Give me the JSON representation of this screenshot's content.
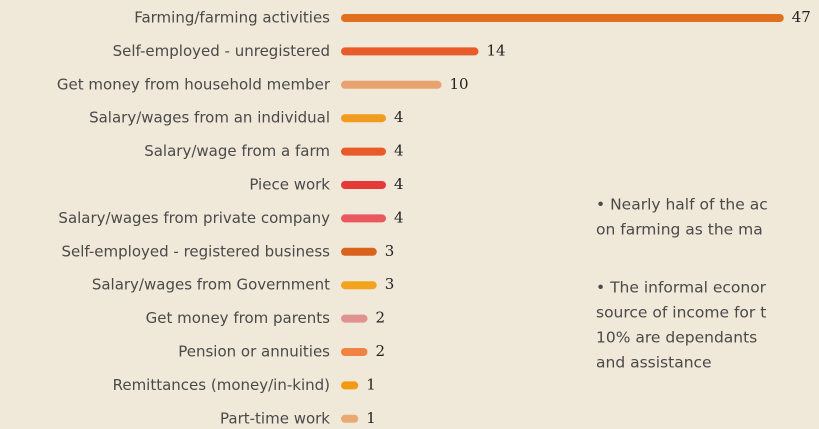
{
  "chart_data": {
    "type": "bar",
    "orientation": "horizontal",
    "categories": [
      "Farming/farming activities",
      "Self-employed - unregistered",
      "Get money from household member",
      "Salary/wages from an individual",
      "Salary/wage from a farm",
      "Piece work",
      "Salary/wages from private company",
      "Self-employed - registered business",
      "Salary/wages from Government",
      "Get money from parents",
      "Pension or annuities",
      "Remittances (money/in-kind)",
      "Part-time work"
    ],
    "values": [
      47,
      14,
      10,
      4,
      4,
      4,
      4,
      3,
      3,
      2,
      2,
      1,
      1
    ],
    "colors": [
      "#e0701e",
      "#e85a2a",
      "#e8a270",
      "#f09c1e",
      "#e85a28",
      "#e63a38",
      "#e8585e",
      "#d8621e",
      "#f2a41e",
      "#e09292",
      "#f08242",
      "#f29a10",
      "#e8aa72"
    ],
    "annotations": [
      [
        "• Nearly half of the ac",
        "on farming as the ma"
      ],
      [
        "• The informal econor",
        "source of income for t",
        "10% are dependants",
        "and assistance"
      ]
    ]
  }
}
